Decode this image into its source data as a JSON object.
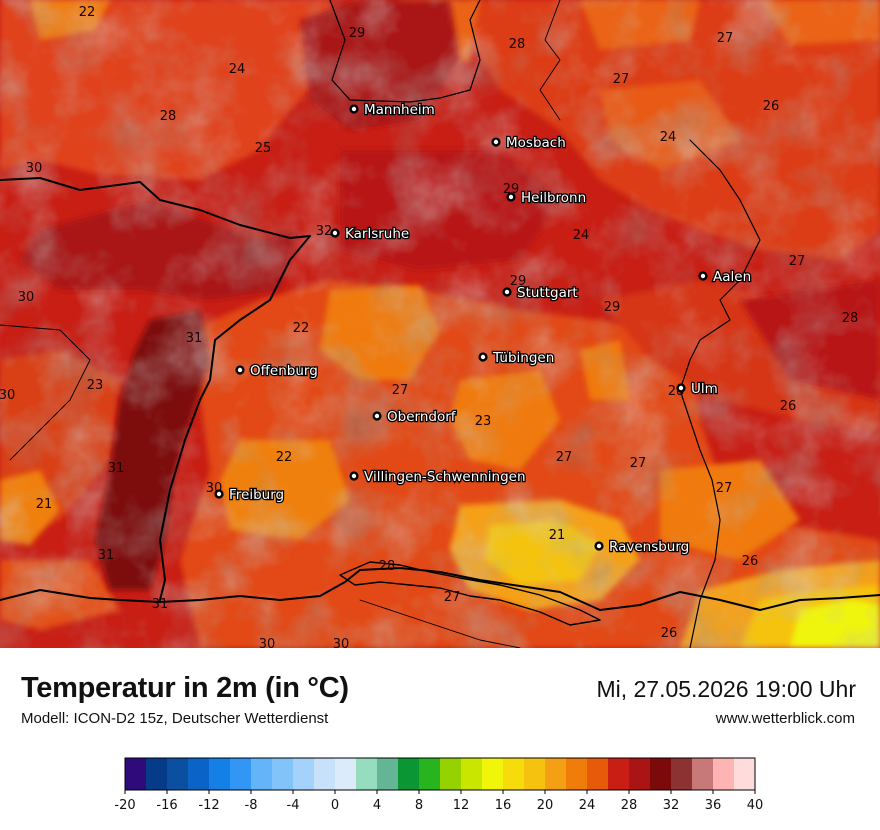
{
  "title": "Temperatur in 2m (in °C)",
  "model": "Modell: ICON-D2 15z, Deutscher Wetterdienst",
  "datetime": "Mi, 27.05.2026 19:00 Uhr",
  "website": "www.wetterblick.com",
  "cities": [
    {
      "name": "Mannheim"
    },
    {
      "name": "Mosbach"
    },
    {
      "name": "Heilbronn"
    },
    {
      "name": "Karlsruhe"
    },
    {
      "name": "Aalen"
    },
    {
      "name": "Stuttgart"
    },
    {
      "name": "Tübingen"
    },
    {
      "name": "Offenburg"
    },
    {
      "name": "Ulm"
    },
    {
      "name": "Oberndorf"
    },
    {
      "name": "Villingen-Schwenningen"
    },
    {
      "name": "Freiburg"
    },
    {
      "name": "Ravensburg"
    }
  ],
  "temperature_labels": [
    "22",
    "29",
    "28",
    "27",
    "24",
    "27",
    "26",
    "28",
    "25",
    "24",
    "30",
    "29",
    "24",
    "32",
    "27",
    "30",
    "29",
    "28",
    "22",
    "31",
    "29",
    "30",
    "23",
    "27",
    "28",
    "26",
    "23",
    "27",
    "27",
    "31",
    "22",
    "30",
    "27",
    "21",
    "21",
    "26",
    "31",
    "28",
    "27",
    "26",
    "31",
    "30",
    "30"
  ],
  "legend": {
    "ticks": [
      "-20",
      "-16",
      "-12",
      "-8",
      "-4",
      "0",
      "4",
      "8",
      "12",
      "16",
      "20",
      "24",
      "28",
      "32",
      "36",
      "40"
    ],
    "colors": [
      "#2e0a7a",
      "#063b8a",
      "#0a4fa0",
      "#0a64c8",
      "#1480e6",
      "#3296f5",
      "#64b4fa",
      "#82c3fa",
      "#a5d2fa",
      "#c8e1fa",
      "#dcebfa",
      "#96dcbe",
      "#64b496",
      "#0a9632",
      "#28b41e",
      "#96d200",
      "#c8e600",
      "#f0f50a",
      "#f5dc0a",
      "#f5c30f",
      "#f5a014",
      "#f07d0a",
      "#e65a0a",
      "#c81e14",
      "#aa1414",
      "#7d0a0a",
      "#8c3232",
      "#c87878",
      "#ffb4b4",
      "#ffdcdc"
    ]
  }
}
